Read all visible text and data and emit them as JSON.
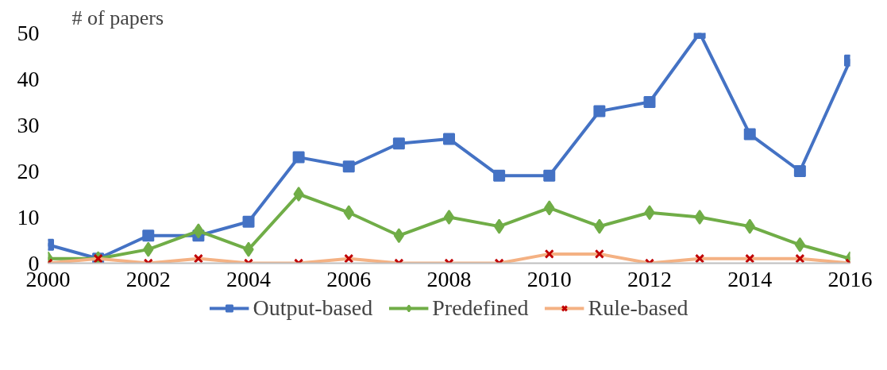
{
  "chart_data": {
    "type": "line",
    "ylabel": "# of papers",
    "x": [
      2000,
      2001,
      2002,
      2003,
      2004,
      2005,
      2006,
      2007,
      2008,
      2009,
      2010,
      2011,
      2012,
      2013,
      2014,
      2015,
      2016
    ],
    "xlim": [
      2000,
      2016
    ],
    "xticks": [
      2000,
      2002,
      2004,
      2006,
      2008,
      2010,
      2012,
      2014,
      2016
    ],
    "ylim": [
      0,
      50
    ],
    "yticks": [
      0,
      10,
      20,
      30,
      40,
      50
    ],
    "grid": false,
    "legend": "bottom",
    "series": [
      {
        "name": "Output-based",
        "color": "#4472c4",
        "marker": "square",
        "values": [
          4,
          1,
          6,
          6,
          9,
          23,
          21,
          26,
          27,
          19,
          19,
          33,
          35,
          50,
          28,
          20,
          44
        ]
      },
      {
        "name": "Predefined",
        "color": "#70ad47",
        "marker": "diamond",
        "values": [
          1,
          1,
          3,
          7,
          3,
          15,
          11,
          6,
          10,
          8,
          12,
          8,
          11,
          10,
          8,
          4,
          1
        ]
      },
      {
        "name": "Rule-based",
        "color": "#f4b183",
        "marker": "cross",
        "values": [
          0,
          1,
          0,
          1,
          0,
          0,
          1,
          0,
          0,
          0,
          2,
          2,
          0,
          1,
          1,
          1,
          0
        ]
      }
    ]
  }
}
